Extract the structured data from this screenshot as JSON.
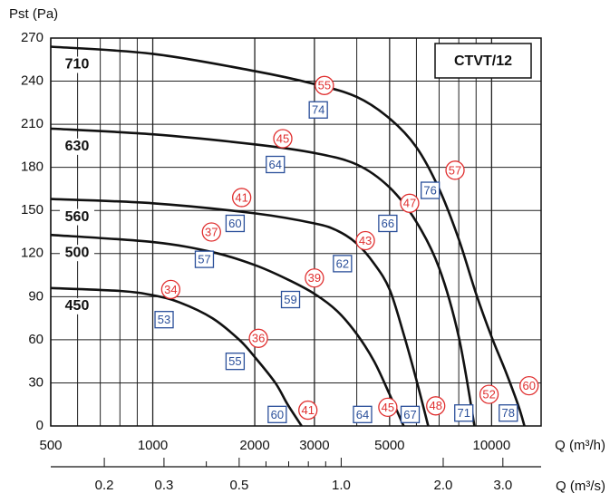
{
  "chart_data": {
    "type": "line",
    "title": "CTVT/12",
    "y_label": "Pst (Pa)",
    "x_label": "Q (m³/h)",
    "x2_label": "Q (m³/s)",
    "xlog": true,
    "xlim": [
      500,
      14000
    ],
    "xticks": [
      500,
      1000,
      2000,
      3000,
      5000,
      10000
    ],
    "xminor": [
      600,
      700,
      800,
      900,
      4000,
      6000,
      7000,
      8000,
      9000
    ],
    "x2lim": [
      0.139,
      3.89
    ],
    "x2ticks": [
      0.2,
      0.3,
      0.5,
      {
        "value": 1,
        "label": "1.0"
      },
      {
        "value": 2,
        "label": "2.0"
      },
      {
        "value": 3,
        "label": "3.0"
      }
    ],
    "x2minor": [
      0.4,
      0.6,
      0.7,
      0.8,
      0.9
    ],
    "ylim": [
      0,
      270
    ],
    "yticks": [
      0,
      30,
      60,
      90,
      120,
      150,
      180,
      210,
      240,
      270
    ],
    "grid": true,
    "series": [
      {
        "name": "710",
        "color": "#111111",
        "x": [
          500,
          1000,
          2000,
          3000,
          4000,
          5000,
          6000,
          7000,
          8000,
          9000,
          10000,
          11000,
          12000,
          12500
        ],
        "values": [
          264,
          259,
          247,
          238,
          229,
          214,
          194,
          165,
          130,
          92,
          62,
          38,
          14,
          0
        ]
      },
      {
        "name": "630",
        "color": "#111111",
        "x": [
          500,
          1000,
          2000,
          3000,
          4000,
          5000,
          6000,
          7000,
          8000,
          8900
        ],
        "values": [
          207,
          203,
          196,
          190,
          182,
          166,
          142,
          110,
          62,
          0
        ]
      },
      {
        "name": "560",
        "color": "#111111",
        "x": [
          500,
          1000,
          2000,
          3000,
          3500,
          4000,
          4500,
          5000,
          5500,
          6000,
          6500
        ],
        "values": [
          158,
          155,
          148,
          141,
          136,
          127,
          113,
          95,
          64,
          32,
          0
        ]
      },
      {
        "name": "500",
        "color": "#111111",
        "x": [
          500,
          1000,
          1500,
          2000,
          2500,
          3000,
          3500,
          4000,
          4500,
          5000,
          5500
        ],
        "values": [
          133,
          128,
          121,
          112,
          102,
          92,
          80,
          64,
          45,
          22,
          0
        ]
      },
      {
        "name": "450",
        "color": "#111111",
        "x": [
          500,
          800,
          1000,
          1200,
          1500,
          1800,
          2000,
          2300,
          2500,
          2750
        ],
        "values": [
          96,
          94,
          91,
          86,
          75,
          60,
          48,
          30,
          15,
          0
        ]
      }
    ],
    "circle_color": "#e03030",
    "circle_points": {
      "x": [
        3210,
        2420,
        7800,
        5730,
        1830,
        1490,
        4240,
        3000,
        1130,
        2050,
        2870,
        4940,
        6840,
        9830,
        12900
      ],
      "values": [
        237,
        200,
        178,
        155,
        159,
        135,
        129,
        103,
        95,
        61,
        11,
        13,
        14,
        22,
        28
      ],
      "labels": [
        "55",
        "45",
        "57",
        "47",
        "41",
        "37",
        "43",
        "39",
        "34",
        "36",
        "41",
        "45",
        "48",
        "52",
        "60"
      ]
    },
    "square_color": "#2a4f9a",
    "square_points": {
      "x": [
        3080,
        2300,
        6590,
        4940,
        1750,
        1420,
        3630,
        2550,
        1080,
        1750,
        2330,
        4160,
        5750,
        8280,
        11200
      ],
      "values": [
        220,
        182,
        164,
        141,
        141,
        116,
        113,
        88,
        74,
        45,
        8,
        8,
        8,
        9,
        9
      ],
      "labels": [
        "74",
        "64",
        "76",
        "66",
        "60",
        "57",
        "62",
        "59",
        "53",
        "55",
        "60",
        "64",
        "67",
        "71",
        "78"
      ]
    }
  }
}
